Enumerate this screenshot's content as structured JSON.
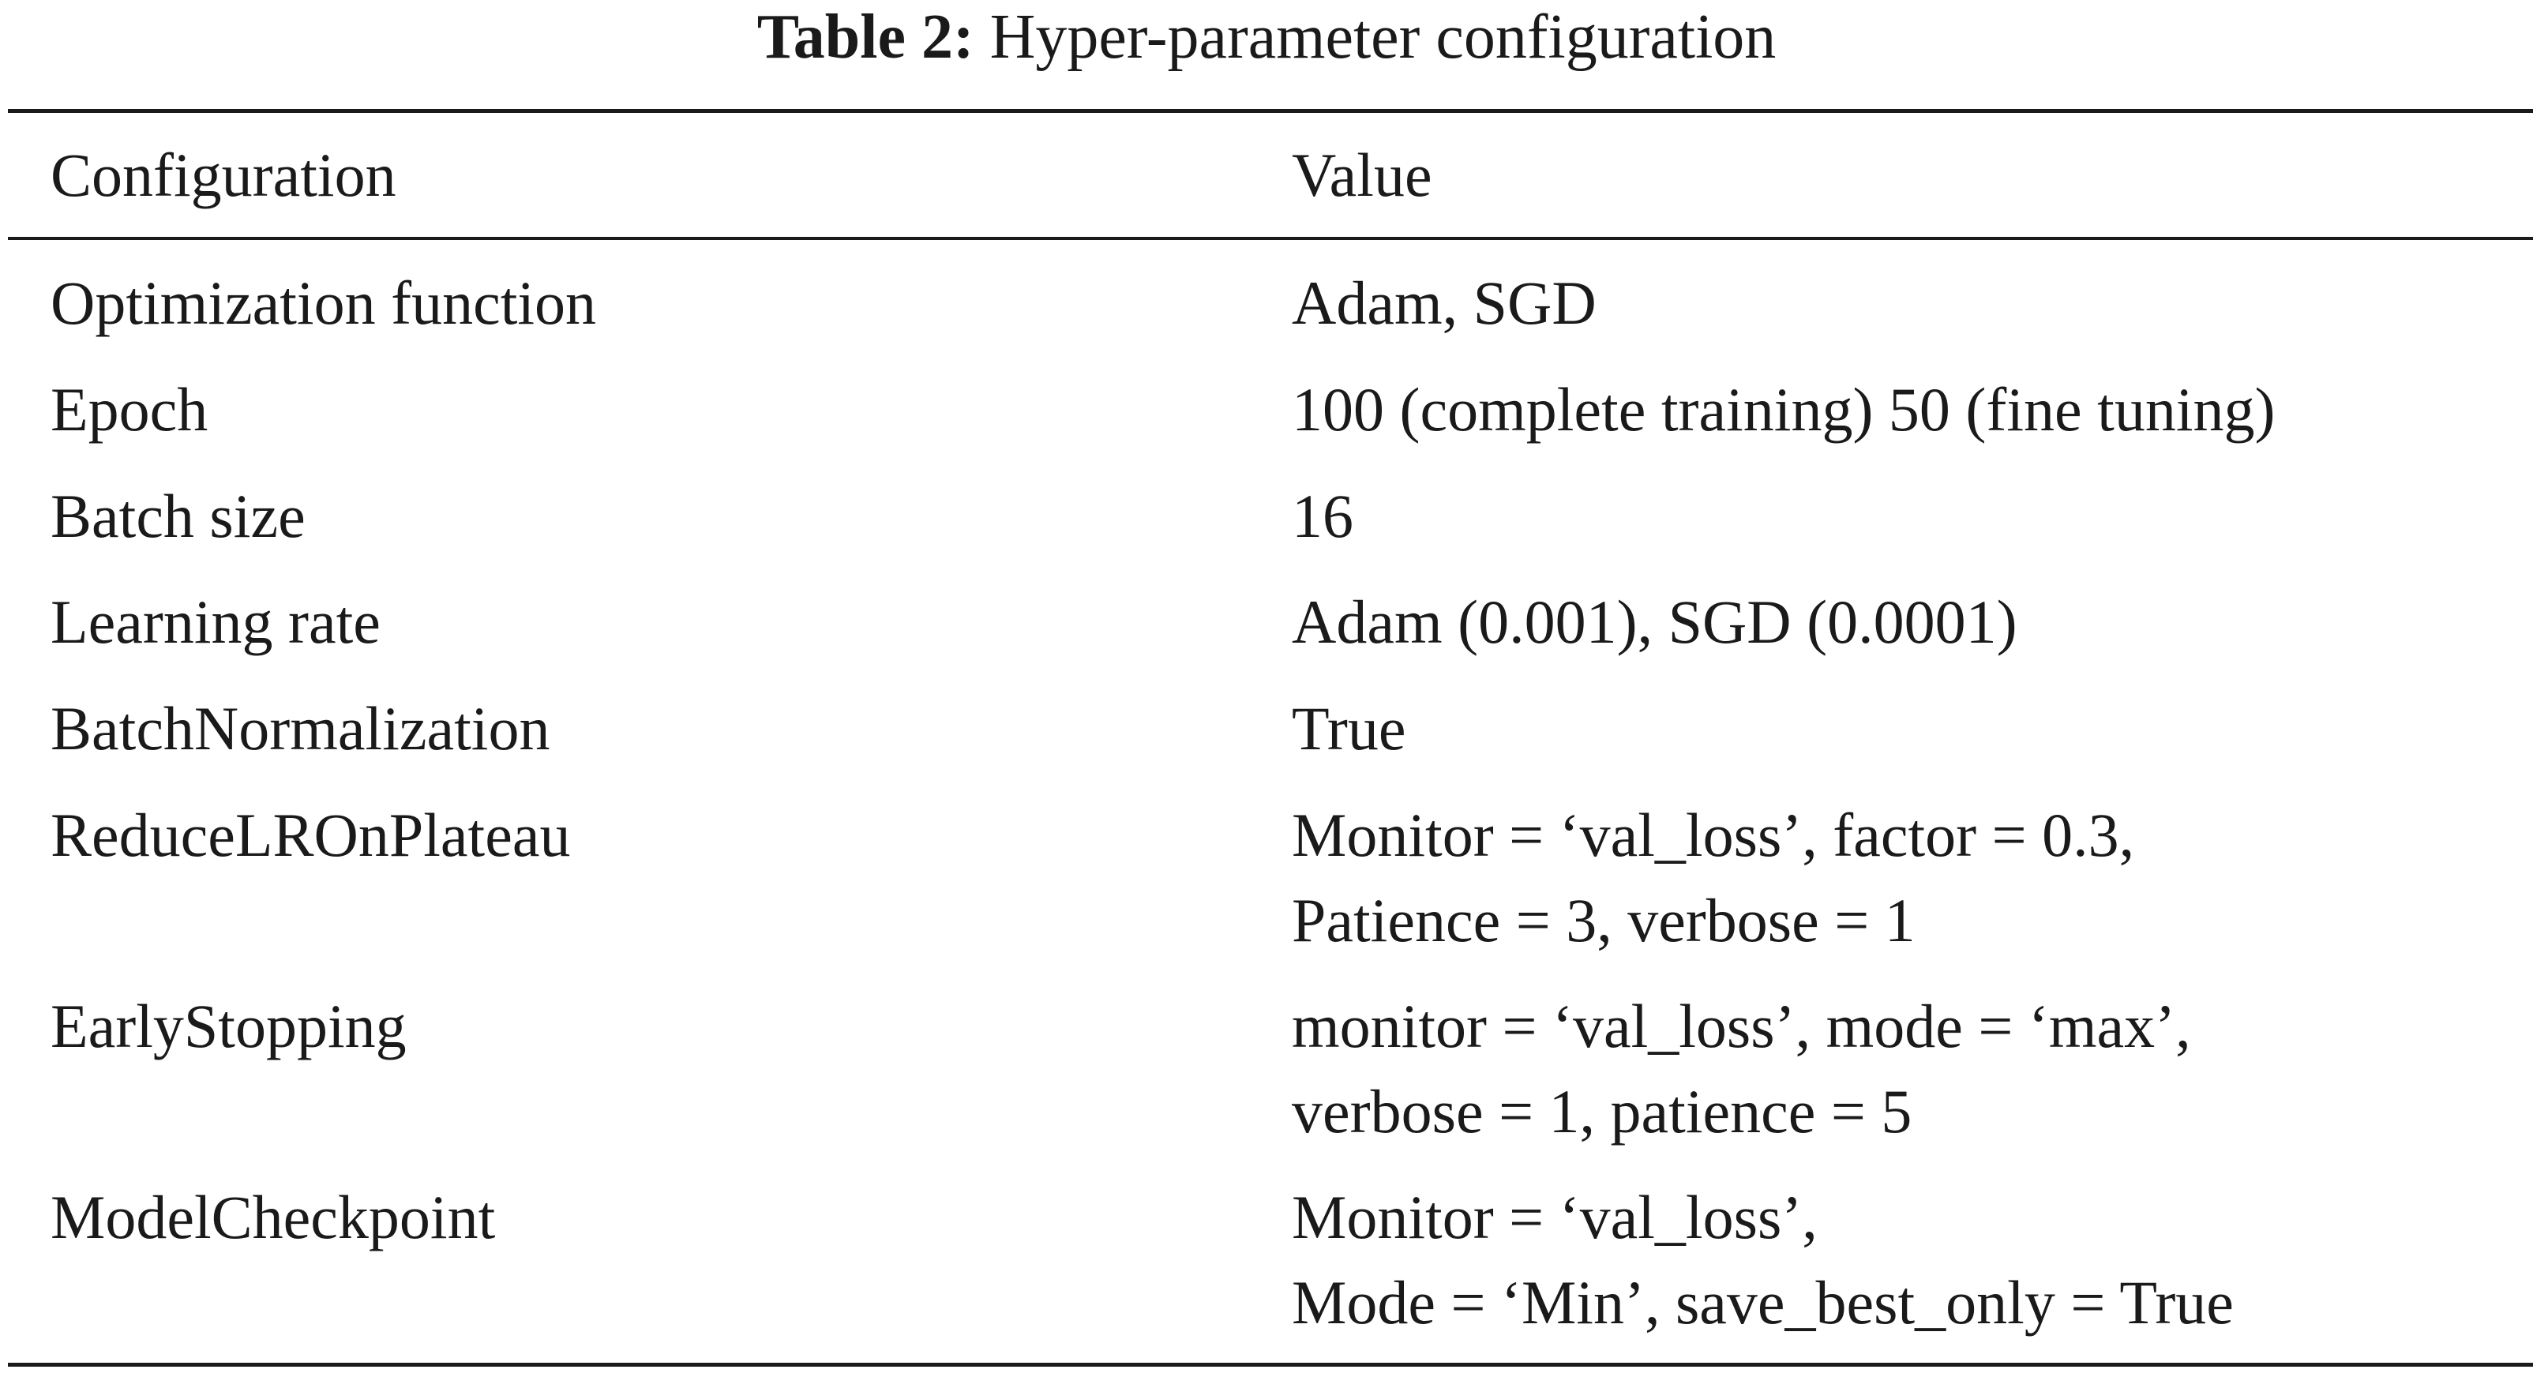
{
  "caption": {
    "label": "Table 2:",
    "title": "Hyper-parameter configuration"
  },
  "table": {
    "headers": [
      "Configuration",
      "Value"
    ],
    "rows": [
      {
        "config": "Optimization function",
        "value": [
          "Adam, SGD"
        ]
      },
      {
        "config": "Epoch",
        "value": [
          "100 (complete training) 50 (fine tuning)"
        ]
      },
      {
        "config": "Batch size",
        "value": [
          "16"
        ]
      },
      {
        "config": "Learning rate",
        "value": [
          "Adam (0.001), SGD (0.0001)"
        ]
      },
      {
        "config": "BatchNormalization",
        "value": [
          "True"
        ]
      },
      {
        "config": "ReduceLROnPlateau",
        "value": [
          "Monitor = ‘val_loss’, factor = 0.3,",
          "Patience = 3, verbose = 1"
        ]
      },
      {
        "config": "EarlyStopping",
        "value": [
          "monitor = ‘val_loss’, mode = ‘max’,",
          "verbose = 1, patience = 5"
        ]
      },
      {
        "config": "ModelCheckpoint",
        "value": [
          "Monitor = ‘val_loss’,",
          "Mode = ‘Min’, save_best_only = True"
        ]
      }
    ]
  }
}
